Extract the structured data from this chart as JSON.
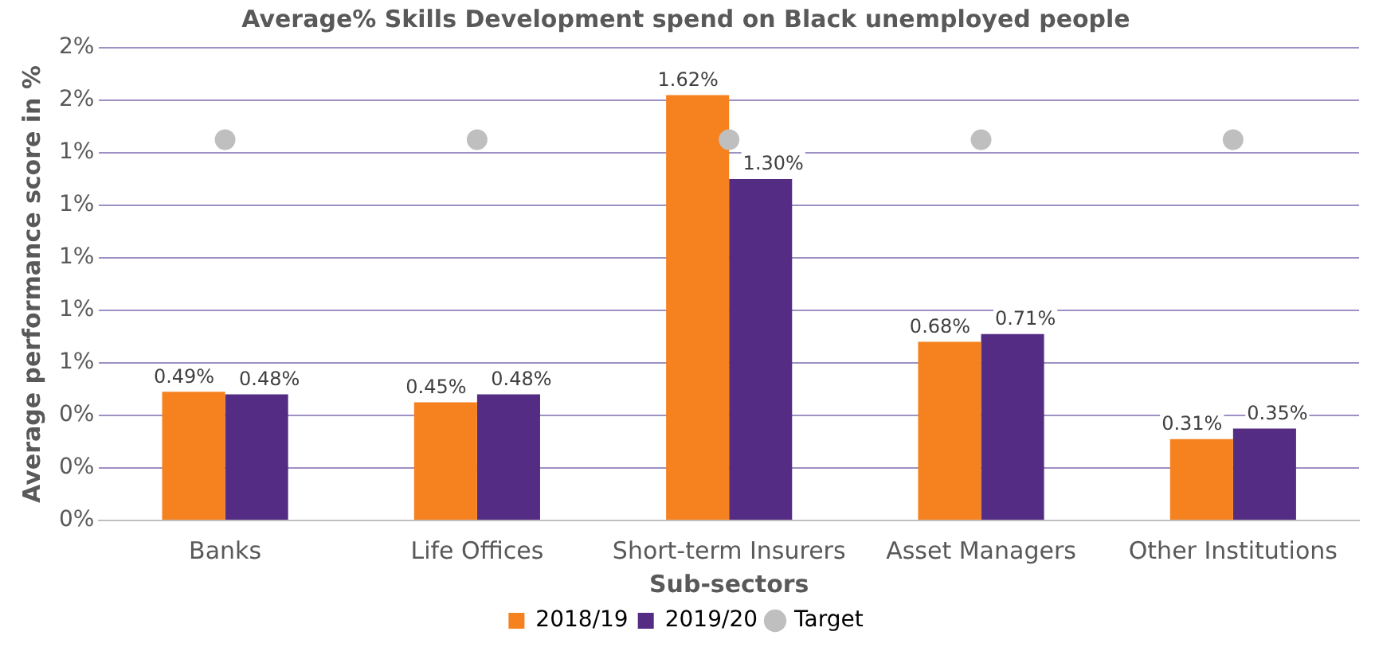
{
  "chart_data": {
    "type": "bar",
    "title": "Average% Skills Development spend on Black unemployed people",
    "xlabel": "Sub-sectors",
    "ylabel": "Average performance score in %",
    "categories": [
      "Banks",
      "Life Offices",
      "Short-term Insurers",
      "Asset Managers",
      "Other Institutions"
    ],
    "series": [
      {
        "name": "2018/19",
        "color": "#f5821f",
        "values": [
          0.49,
          0.45,
          1.62,
          0.68,
          0.31
        ],
        "value_labels": [
          "0.49%",
          "0.45%",
          "1.62%",
          "0.68%",
          "0.31%"
        ]
      },
      {
        "name": "2019/20",
        "color": "#542c84",
        "values": [
          0.48,
          0.48,
          1.3,
          0.71,
          0.35
        ],
        "value_labels": [
          "0.48%",
          "0.48%",
          "1.30%",
          "0.71%",
          "0.35%"
        ]
      },
      {
        "name": "Target",
        "type": "scatter",
        "color": "#bfbfbf",
        "x": [
          "Banks",
          "Life Offices",
          "Short-term Insurers",
          "Asset Managers",
          "Other Institutions"
        ],
        "values": [
          1.45,
          1.45,
          1.45,
          1.45,
          1.45
        ]
      }
    ],
    "ylim": [
      0,
      1.8
    ],
    "yticks": [
      {
        "value": 0,
        "label": "0%"
      },
      {
        "value": 0.2,
        "label": "0%"
      },
      {
        "value": 0.4,
        "label": "0%"
      },
      {
        "value": 0.6,
        "label": "1%"
      },
      {
        "value": 0.8,
        "label": "1%"
      },
      {
        "value": 1,
        "label": "1%"
      },
      {
        "value": 1.2,
        "label": "1%"
      },
      {
        "value": 1.4,
        "label": "1%"
      },
      {
        "value": 1.6,
        "label": "2%"
      },
      {
        "value": 1.8,
        "label": "2%"
      }
    ],
    "grid": "y",
    "legend": "bottom",
    "marker": "circle"
  }
}
